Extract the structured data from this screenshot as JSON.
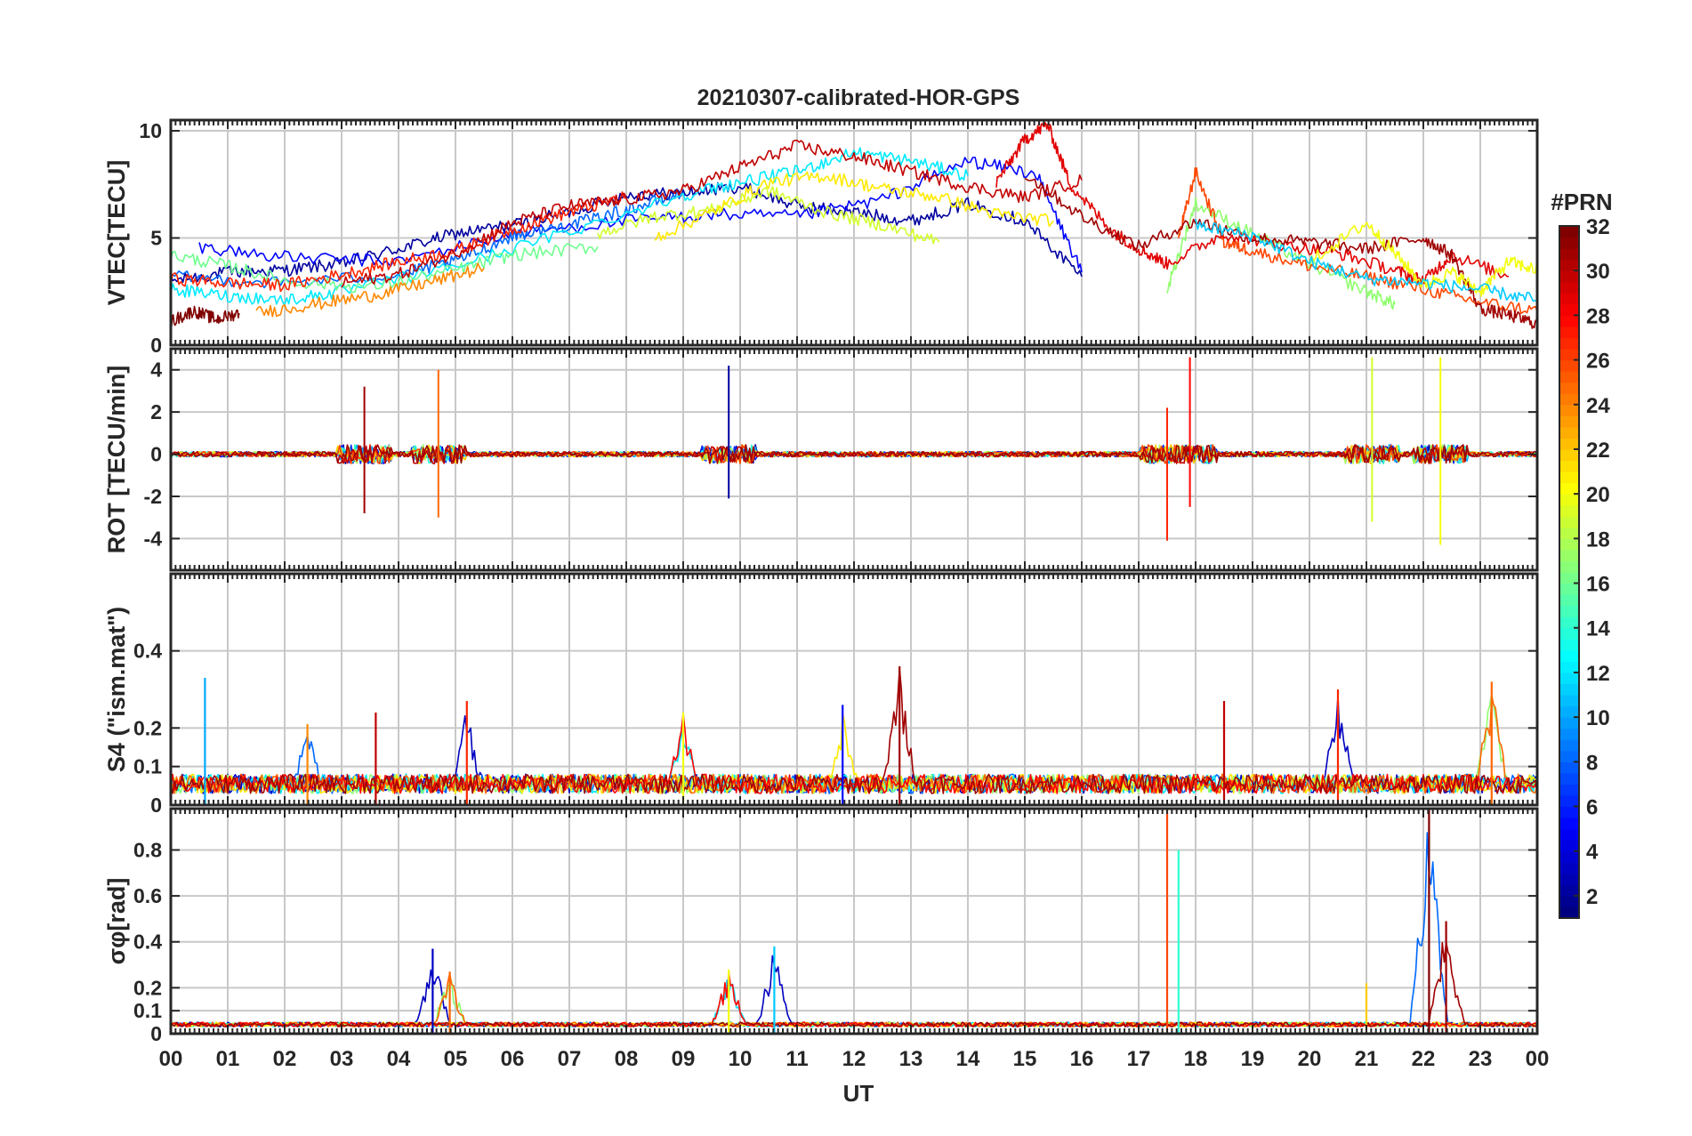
{
  "chart_data": {
    "type": "line",
    "title": "20210307-calibrated-HOR-GPS",
    "xlabel": "UT",
    "x_tick_labels": [
      "00",
      "01",
      "02",
      "03",
      "04",
      "05",
      "06",
      "07",
      "08",
      "09",
      "10",
      "11",
      "12",
      "13",
      "14",
      "15",
      "16",
      "17",
      "18",
      "19",
      "20",
      "21",
      "22",
      "23",
      "00"
    ],
    "xlim": [
      0,
      24
    ],
    "colorbar": {
      "label": "#PRN",
      "range": [
        1,
        32
      ],
      "tick_labels": [
        "2",
        "4",
        "6",
        "8",
        "10",
        "12",
        "14",
        "16",
        "18",
        "20",
        "22",
        "24",
        "26",
        "28",
        "30",
        "32"
      ],
      "colormap": "jet"
    },
    "panels": [
      {
        "name": "vtec",
        "ylabel": "VTEC[TECU]",
        "ylim": [
          0,
          10.5
        ],
        "y_ticks": [
          0,
          5,
          10
        ],
        "y_tick_labels": [
          "0",
          "5",
          "10"
        ],
        "grid": true,
        "series": [
          {
            "prn": 2,
            "x": [
              0,
              1,
              2,
              3,
              4,
              5,
              6,
              7,
              8,
              9,
              10,
              11,
              12,
              13,
              14,
              15,
              16
            ],
            "values": [
              3.0,
              3.4,
              3.5,
              3.8,
              4.5,
              5.2,
              5.6,
              6.2,
              7.0,
              7.1,
              7.4,
              6.5,
              6.2,
              5.8,
              6.6,
              5.8,
              3.2
            ]
          },
          {
            "prn": 5,
            "x": [
              0.5,
              2,
              4,
              6,
              8,
              9.5,
              11,
              12.5,
              14,
              15.2,
              16
            ],
            "values": [
              4.6,
              4.1,
              3.9,
              5.2,
              5.8,
              6.1,
              6.0,
              6.8,
              8.6,
              8.0,
              3.4
            ]
          },
          {
            "prn": 8,
            "x": [
              0,
              2,
              4,
              5,
              6,
              7,
              8,
              9
            ],
            "values": [
              3.2,
              2.9,
              3.3,
              3.9,
              5.1,
              5.6,
              6.3,
              7.1
            ]
          },
          {
            "prn": 12,
            "x": [
              0,
              1,
              2,
              3,
              5,
              7,
              9,
              10,
              11,
              12,
              13,
              14
            ],
            "values": [
              2.6,
              2.3,
              2.1,
              2.5,
              3.7,
              5.3,
              7.0,
              7.6,
              8.1,
              9.0,
              8.6,
              7.9
            ]
          },
          {
            "prn": 16,
            "x": [
              0,
              1,
              2,
              3.5,
              5,
              6,
              7.5
            ],
            "values": [
              4.2,
              3.7,
              3.0,
              2.7,
              3.5,
              4.2,
              4.6
            ]
          },
          {
            "prn": 19,
            "x": [
              7.5,
              8.5,
              9.5,
              10.5,
              11.5,
              12.5,
              13.5
            ],
            "values": [
              5.2,
              6.0,
              6.3,
              7.2,
              6.2,
              5.6,
              4.8
            ]
          },
          {
            "prn": 21,
            "x": [
              8.5,
              9.5,
              10.5,
              11.5,
              12.5,
              13.5,
              14.5,
              15.5
            ],
            "values": [
              5.0,
              6.2,
              7.6,
              7.9,
              7.3,
              6.9,
              6.1,
              5.8
            ]
          },
          {
            "prn": 24,
            "x": [
              1.5,
              2.5,
              3.5,
              4.5,
              5.5
            ],
            "values": [
              1.5,
              1.9,
              2.3,
              2.9,
              3.6
            ]
          },
          {
            "prn": 27,
            "x": [
              0,
              1,
              2,
              3,
              4,
              5,
              6,
              7,
              8
            ],
            "values": [
              3.1,
              2.9,
              2.8,
              3.3,
              3.9,
              4.4,
              5.4,
              6.2,
              6.9
            ]
          },
          {
            "prn": 30,
            "x": [
              3,
              4,
              5,
              6,
              7,
              8,
              9,
              10,
              11,
              12,
              13,
              14,
              15,
              16
            ],
            "values": [
              2.9,
              3.3,
              4.3,
              5.7,
              6.5,
              6.8,
              7.2,
              8.3,
              9.3,
              8.8,
              8.1,
              7.4,
              6.9,
              7.7
            ]
          },
          {
            "prn": 32,
            "x": [
              0,
              0.4,
              0.8,
              1.2
            ],
            "values": [
              1.1,
              1.6,
              1.2,
              1.5
            ]
          },
          {
            "prn": 17,
            "x": [
              17.5,
              18,
              19,
              20,
              21,
              21.5
            ],
            "values": [
              2.6,
              6.6,
              5.2,
              3.8,
              2.5,
              1.9
            ]
          },
          {
            "prn": 26,
            "x": [
              17.7,
              18,
              18.5,
              19,
              20,
              21,
              22,
              23,
              24
            ],
            "values": [
              5.0,
              8.1,
              4.8,
              4.4,
              3.7,
              3.2,
              2.6,
              2.0,
              1.6
            ]
          },
          {
            "prn": 29,
            "x": [
              14.5,
              15,
              15.4,
              15.8,
              16.5,
              17,
              17.5,
              18.5,
              19.5,
              20.5,
              21.5,
              22,
              22.5,
              23.5
            ],
            "values": [
              7.6,
              9.6,
              10.3,
              7.5,
              5.4,
              4.5,
              3.8,
              5.2,
              4.7,
              4.3,
              3.5,
              3.0,
              4.2,
              3.2
            ]
          },
          {
            "prn": 31,
            "x": [
              15,
              16,
              17,
              18,
              19,
              20,
              21,
              22,
              22.5,
              23,
              23.5,
              24
            ],
            "values": [
              8.0,
              6.0,
              4.6,
              5.8,
              5.0,
              4.8,
              4.5,
              5.0,
              4.2,
              1.7,
              1.4,
              1.0
            ]
          },
          {
            "prn": 20,
            "x": [
              20,
              21,
              21.5,
              22,
              22.5,
              23,
              23.5,
              24
            ],
            "values": [
              3.9,
              5.7,
              4.3,
              2.8,
              3.4,
              2.5,
              3.9,
              3.5
            ]
          },
          {
            "prn": 11,
            "x": [
              18,
              19,
              20,
              21,
              22,
              23,
              24
            ],
            "values": [
              5.6,
              5.1,
              3.9,
              3.1,
              2.9,
              2.6,
              2.1
            ]
          }
        ]
      },
      {
        "name": "rot",
        "ylabel": "ROT [TECU/min]",
        "ylim": [
          -5.5,
          5
        ],
        "y_ticks": [
          -4,
          -2,
          0,
          2,
          4
        ],
        "y_tick_labels": [
          "-4",
          "-2",
          "0",
          "2",
          "4"
        ],
        "grid": true,
        "note_spikes": [
          {
            "x": 3.4,
            "min": -2.8,
            "max": 3.2,
            "prn": 31
          },
          {
            "x": 4.7,
            "min": -3.0,
            "max": 4.0,
            "prn": 25
          },
          {
            "x": 9.8,
            "min": -2.1,
            "max": 4.2,
            "prn": 2
          },
          {
            "x": 17.5,
            "min": -4.1,
            "max": 2.2,
            "prn": 27
          },
          {
            "x": 17.9,
            "min": -2.5,
            "max": 4.6,
            "prn": 28
          },
          {
            "x": 21.1,
            "min": -3.2,
            "max": 4.6,
            "prn": 19
          },
          {
            "x": 22.3,
            "min": -4.3,
            "max": 4.6,
            "prn": 20
          }
        ]
      },
      {
        "name": "s4",
        "ylabel": "S4 (\"ism.mat\")",
        "ylim": [
          0,
          0.6
        ],
        "y_ticks": [
          0,
          0.1,
          0.2,
          0.4
        ],
        "y_tick_labels": [
          "0",
          "0.1",
          "0.2",
          "0.4"
        ],
        "grid": true,
        "peaks": [
          {
            "x": 0.6,
            "max": 0.33,
            "prn": 10
          },
          {
            "x": 2.4,
            "max": 0.21,
            "prn": 24
          },
          {
            "x": 3.6,
            "max": 0.24,
            "prn": 30
          },
          {
            "x": 5.2,
            "max": 0.27,
            "prn": 27
          },
          {
            "x": 9.0,
            "max": 0.24,
            "prn": 20
          },
          {
            "x": 11.8,
            "max": 0.26,
            "prn": 5
          },
          {
            "x": 12.8,
            "max": 0.36,
            "prn": 31
          },
          {
            "x": 18.5,
            "max": 0.27,
            "prn": 30
          },
          {
            "x": 20.5,
            "max": 0.3,
            "prn": 27
          },
          {
            "x": 23.2,
            "max": 0.32,
            "prn": 25
          }
        ]
      },
      {
        "name": "sigma_phi",
        "ylabel": "σφ[rad]",
        "ylim": [
          0,
          0.98
        ],
        "y_ticks": [
          0,
          0.1,
          0.2,
          0.4,
          0.6,
          0.8
        ],
        "y_tick_labels": [
          "0",
          "0.1",
          "0.2",
          "0.4",
          "0.6",
          "0.8"
        ],
        "grid": true,
        "peaks": [
          {
            "x": 4.6,
            "max": 0.37,
            "prn": 3
          },
          {
            "x": 4.9,
            "max": 0.27,
            "prn": 25
          },
          {
            "x": 9.8,
            "max": 0.28,
            "prn": 20
          },
          {
            "x": 10.6,
            "max": 0.38,
            "prn": 11
          },
          {
            "x": 17.5,
            "max": 0.98,
            "prn": 26
          },
          {
            "x": 17.7,
            "max": 0.8,
            "prn": 14
          },
          {
            "x": 21.0,
            "max": 0.22,
            "prn": 22
          },
          {
            "x": 22.1,
            "max": 0.98,
            "prn": 32
          },
          {
            "x": 22.4,
            "max": 0.49,
            "prn": 31
          }
        ]
      }
    ]
  }
}
